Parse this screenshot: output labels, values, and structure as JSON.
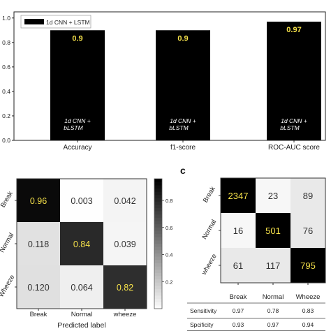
{
  "chart_data": [
    {
      "type": "bar",
      "legend": "1d CNN + LSTM",
      "legend_placement": "top-left",
      "categories": [
        "Accuracy",
        "f1-score",
        "ROC-AUC score"
      ],
      "values": [
        0.9,
        0.9,
        0.97
      ],
      "value_labels": [
        "0.9",
        "0.9",
        "0.97"
      ],
      "bar_text_line1": "1d CNN +",
      "bar_text_line2": "bLSTM",
      "ylim": [
        0,
        1.05
      ],
      "yticks": [
        "0.0",
        "0.2",
        "0.4",
        "0.6",
        "0.8",
        "1.0"
      ],
      "bar_color": "#000000",
      "value_label_color": "#f5e14a"
    },
    {
      "type": "heatmap",
      "row_labels": [
        "Break",
        "Normal",
        "Wheeze"
      ],
      "col_labels": [
        "Break",
        "Normal",
        "wheeze"
      ],
      "cells": [
        [
          "0.96",
          "0.003",
          "0.042"
        ],
        [
          "0.118",
          "0.84",
          "0.039"
        ],
        [
          "0.120",
          "0.064",
          "0.82"
        ]
      ],
      "values": [
        [
          0.96,
          0.003,
          0.042
        ],
        [
          0.118,
          0.84,
          0.039
        ],
        [
          0.12,
          0.064,
          0.82
        ]
      ],
      "xlabel": "Predicted label",
      "colorbar_ticks": [
        "0.8",
        "0.6",
        "0.4",
        "0.2"
      ],
      "colorbar_values": [
        0.8,
        0.6,
        0.4,
        0.2
      ],
      "colorbar_range": [
        0,
        0.96
      ]
    },
    {
      "type": "heatmap",
      "panel_label": "c",
      "row_labels": [
        "Break",
        "Normal",
        "wheeze"
      ],
      "col_labels": [
        "Break",
        "Normal",
        "Wheeze"
      ],
      "cells": [
        [
          "2347",
          "23",
          "89"
        ],
        [
          "16",
          "501",
          "76"
        ],
        [
          "61",
          "117",
          "795"
        ]
      ],
      "values": [
        [
          2347,
          23,
          89
        ],
        [
          16,
          501,
          76
        ],
        [
          61,
          117,
          795
        ]
      ],
      "dark_cells": [
        [
          0,
          0
        ],
        [
          1,
          1
        ],
        [
          2,
          2
        ]
      ],
      "metrics_table": [
        {
          "label": "Sensitivity",
          "values": [
            "0.97",
            "0.78",
            "0.83"
          ]
        },
        {
          "label": "Spcificity",
          "values": [
            "0.93",
            "0.97",
            "0.94"
          ]
        }
      ]
    }
  ]
}
